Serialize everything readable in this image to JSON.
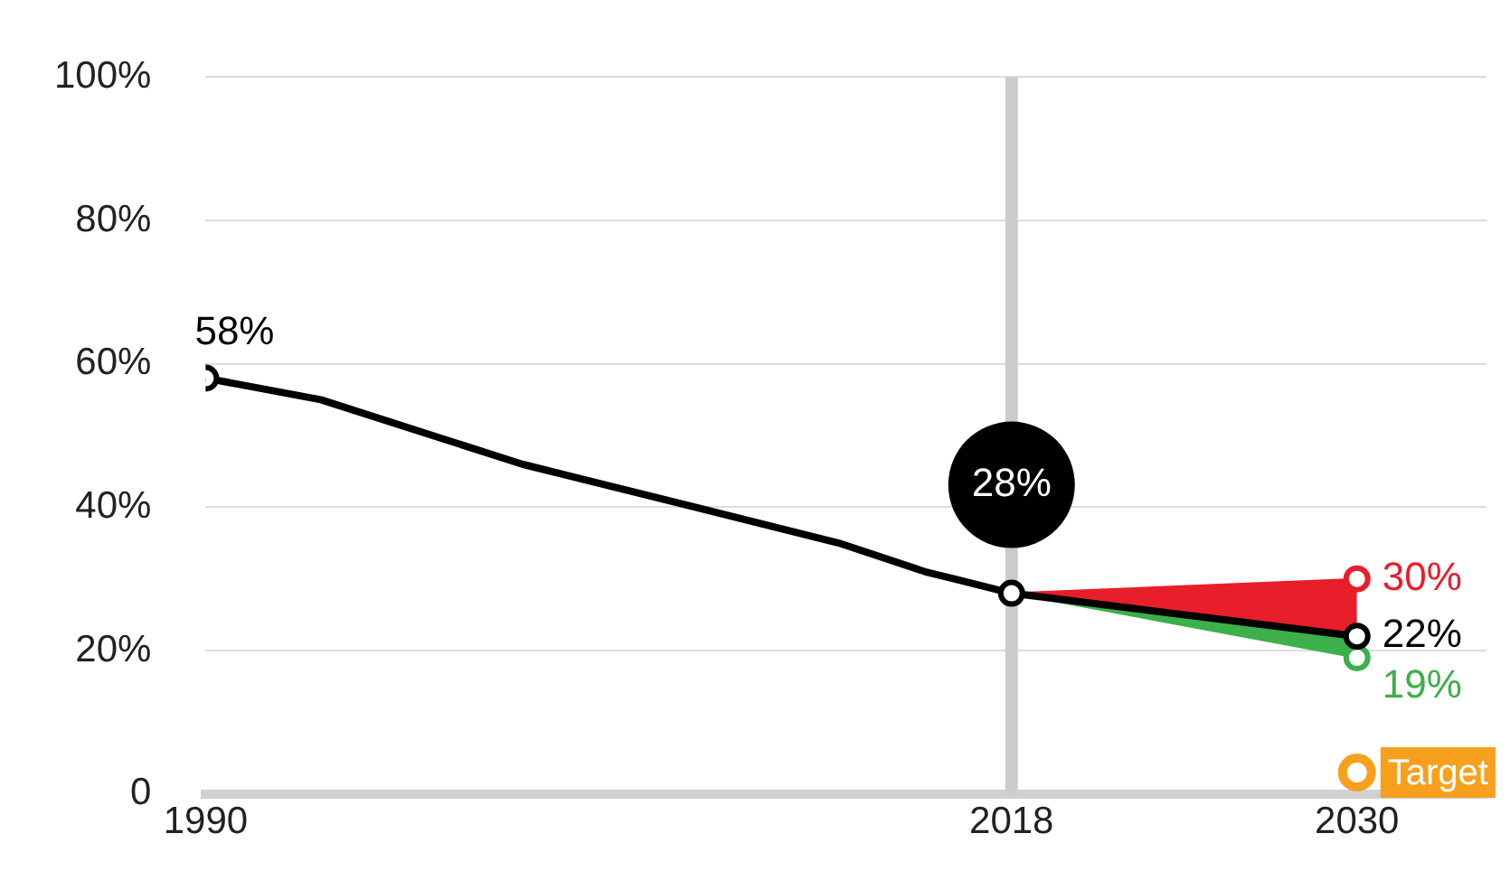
{
  "chart_data": {
    "type": "line",
    "xlim": [
      1990,
      2034.5
    ],
    "xticks": [
      1990,
      2018,
      2030
    ],
    "ylim": [
      0,
      100
    ],
    "yticks": [
      {
        "value": 0,
        "label": "0"
      },
      {
        "value": 20,
        "label": "20%"
      },
      {
        "value": 40,
        "label": "40%"
      },
      {
        "value": 60,
        "label": "60%"
      },
      {
        "value": 80,
        "label": "80%"
      },
      {
        "value": 100,
        "label": "100%"
      }
    ],
    "grid": "y",
    "legend": false,
    "series": [
      {
        "type": "area",
        "color": "#e81e2a",
        "x": [
          2018,
          2030
        ],
        "values": [
          28,
          30
        ],
        "value_labels": [
          null,
          "30%"
        ]
      },
      {
        "type": "area",
        "color": "#3cb04a",
        "x": [
          2018,
          2030
        ],
        "values": [
          28,
          19
        ],
        "value_labels": [
          null,
          "19%"
        ]
      },
      {
        "type": "line",
        "color": "#000000",
        "x": [
          1990,
          1994,
          2001,
          2003,
          2012,
          2015,
          2016,
          2018,
          2030
        ],
        "values": [
          58,
          55,
          46,
          44,
          35,
          31,
          30,
          28,
          22
        ],
        "value_labels": [
          "58%",
          null,
          null,
          null,
          null,
          null,
          null,
          null,
          "22%"
        ]
      },
      {
        "type": "scatter",
        "name": "Target",
        "color": "#f7a01d",
        "x": [
          2030
        ],
        "values": [
          3
        ]
      }
    ],
    "ref_lines": [
      {
        "axis": "x",
        "value": 2018,
        "color": "#cccccc"
      }
    ],
    "annotations": [
      {
        "text": "28%",
        "x": 2018,
        "y": 28
      }
    ]
  }
}
